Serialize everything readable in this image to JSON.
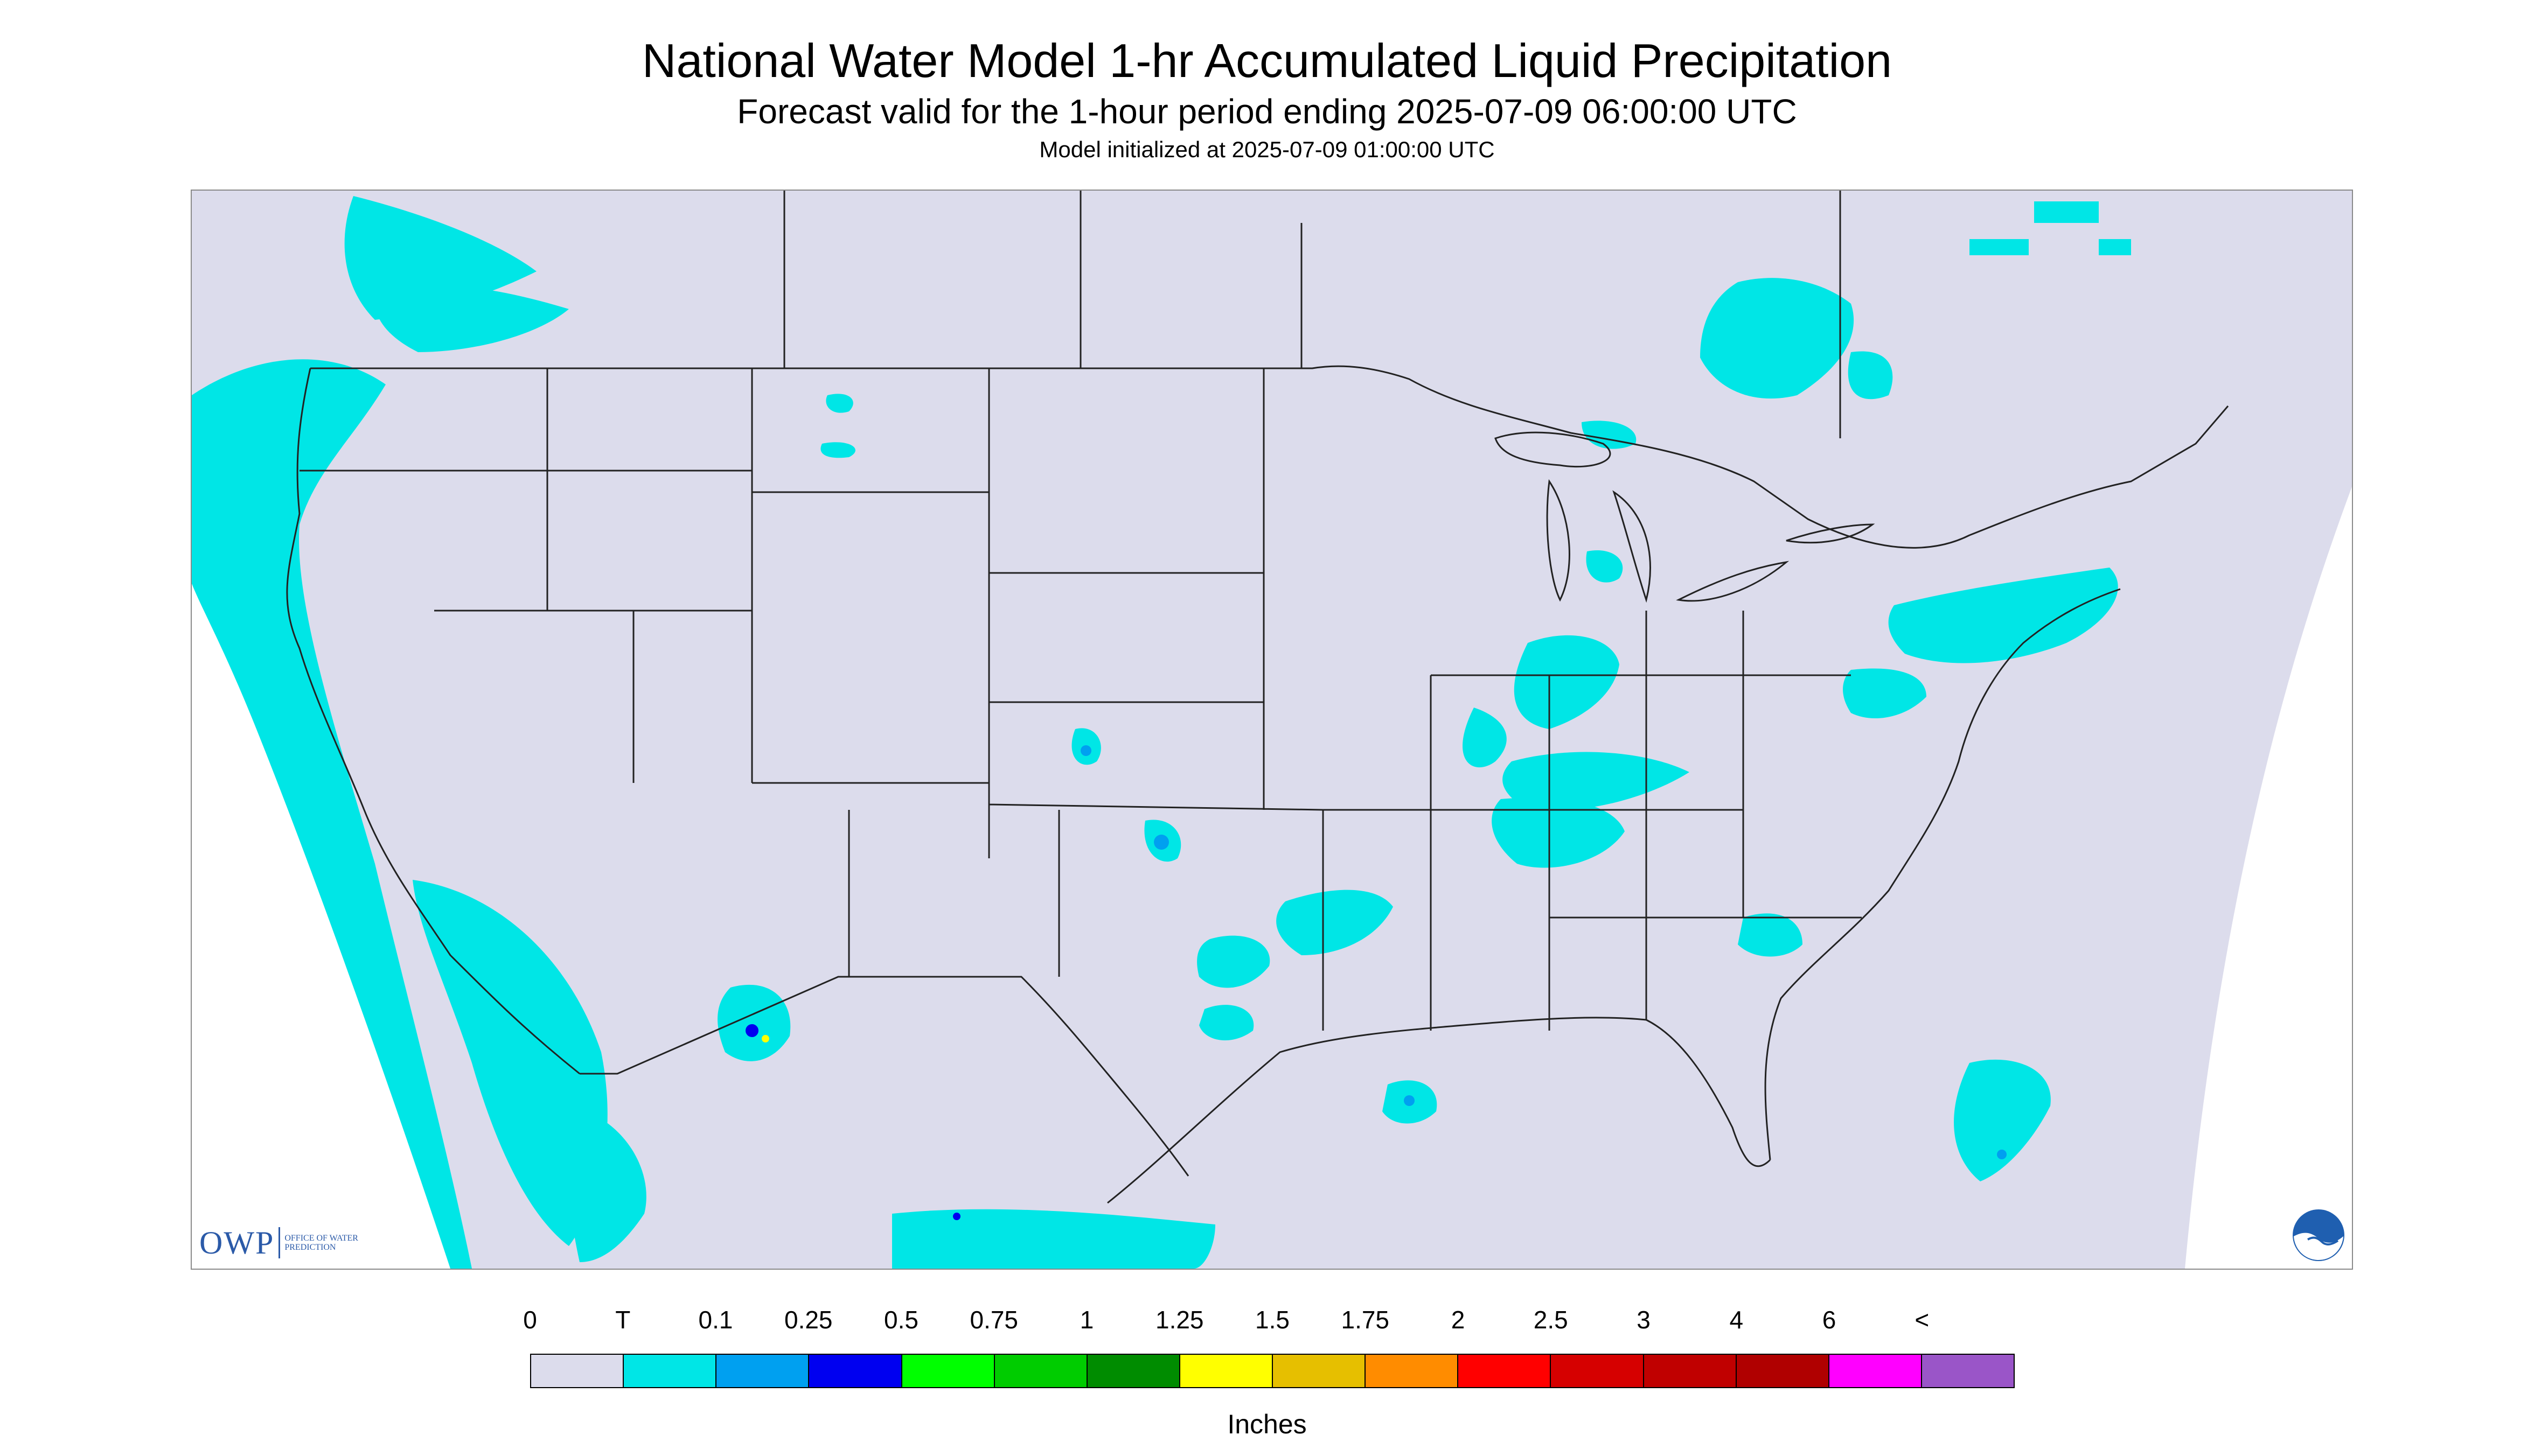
{
  "title": "National Water Model 1-hr Accumulated Liquid Precipitation",
  "subtitle": "Forecast valid for the 1-hour period ending 2025-07-09 06:00:00 UTC",
  "init_line": "Model initialized at 2025-07-09 01:00:00 UTC",
  "map": {
    "background_color": "#dcdcec",
    "outside_color": "#ffffff",
    "border_color": "#222222",
    "logos": {
      "owp_letters": "OWP",
      "owp_org": "OFFICE OF WATER PREDICTION",
      "noaa_icon": "noaa-logo-icon"
    }
  },
  "legend": {
    "tick_labels": [
      "0",
      "T",
      "0.1",
      "0.25",
      "0.5",
      "0.75",
      "1",
      "1.25",
      "1.5",
      "1.75",
      "2",
      "2.5",
      "3",
      "4",
      "6",
      "<"
    ],
    "colors": [
      "#dcdcec",
      "#00e6e6",
      "#00a0f0",
      "#0000f0",
      "#00ff00",
      "#00cc00",
      "#008c00",
      "#ffff00",
      "#e6bf00",
      "#ff8c00",
      "#ff0000",
      "#d60000",
      "#c00000",
      "#b00000",
      "#ff00ff",
      "#9a55c8"
    ],
    "unit": "Inches"
  }
}
